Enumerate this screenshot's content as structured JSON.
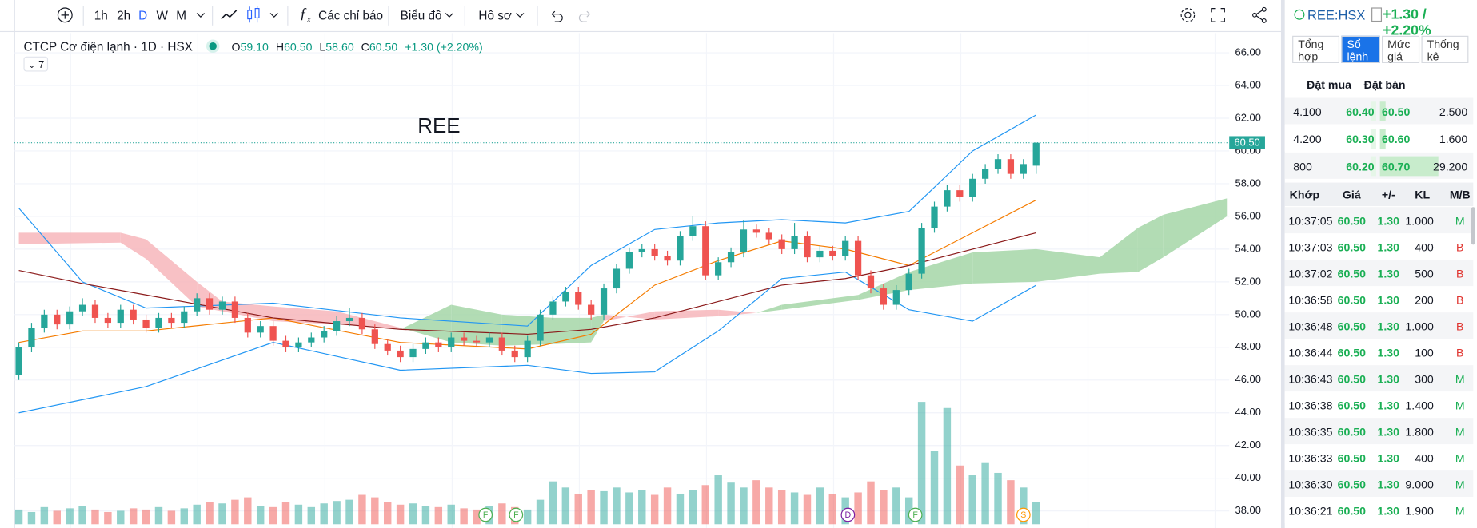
{
  "toolbar": {
    "intervals": [
      "1h",
      "2h",
      "D",
      "W",
      "M"
    ],
    "active_interval_color": "#2962ff",
    "indicators": "Các chỉ báo",
    "chart_menu": "Biểu đồ",
    "profile": "Hồ sơ"
  },
  "legend": {
    "name": "CTCP Cơ điện lạnh · 1D · HSX",
    "o_label": "O",
    "o": "59.10",
    "h_label": "H",
    "h": "60.50",
    "l_label": "L",
    "l": "58.60",
    "c_label": "C",
    "c": "60.50",
    "change": "+1.30 (+2.20%)",
    "collapse": "7"
  },
  "chart_data": {
    "type": "candlestick",
    "title": "REE",
    "up_color": "#26a69a",
    "down_color": "#ef5350",
    "ohlc": [
      [
        46.3,
        48.3,
        46.0,
        48.0
      ],
      [
        48.0,
        49.5,
        47.7,
        49.2
      ],
      [
        49.2,
        50.3,
        48.9,
        50.0
      ],
      [
        50.0,
        50.3,
        49.1,
        49.4
      ],
      [
        49.4,
        50.5,
        49.1,
        50.2
      ],
      [
        50.2,
        51.0,
        49.9,
        50.6
      ],
      [
        50.6,
        50.9,
        49.5,
        49.8
      ],
      [
        49.8,
        50.1,
        49.2,
        49.5
      ],
      [
        49.5,
        50.6,
        49.2,
        50.3
      ],
      [
        50.3,
        50.6,
        49.4,
        49.7
      ],
      [
        49.7,
        50.0,
        48.9,
        49.2
      ],
      [
        49.2,
        50.1,
        48.9,
        49.8
      ],
      [
        49.8,
        50.1,
        49.2,
        49.5
      ],
      [
        49.5,
        50.5,
        49.2,
        50.2
      ],
      [
        50.2,
        51.3,
        49.9,
        51.0
      ],
      [
        51.0,
        51.3,
        50.0,
        50.3
      ],
      [
        50.3,
        51.1,
        50.0,
        50.8
      ],
      [
        50.8,
        51.1,
        49.5,
        49.8
      ],
      [
        49.8,
        50.1,
        48.6,
        48.9
      ],
      [
        48.9,
        49.6,
        48.6,
        49.3
      ],
      [
        49.3,
        49.6,
        48.1,
        48.4
      ],
      [
        48.4,
        48.7,
        47.7,
        48.0
      ],
      [
        48.0,
        48.6,
        47.7,
        48.3
      ],
      [
        48.3,
        48.9,
        48.0,
        48.6
      ],
      [
        48.6,
        49.3,
        48.3,
        49.0
      ],
      [
        49.0,
        49.9,
        48.7,
        49.6
      ],
      [
        49.6,
        50.4,
        49.3,
        49.8
      ],
      [
        49.8,
        50.1,
        48.8,
        49.1
      ],
      [
        49.1,
        49.4,
        47.9,
        48.2
      ],
      [
        48.2,
        48.5,
        47.5,
        47.8
      ],
      [
        47.8,
        48.1,
        47.1,
        47.4
      ],
      [
        47.4,
        48.2,
        47.1,
        47.9
      ],
      [
        47.9,
        48.6,
        47.6,
        48.3
      ],
      [
        48.3,
        48.6,
        47.7,
        48.0
      ],
      [
        48.0,
        48.9,
        47.7,
        48.6
      ],
      [
        48.6,
        48.9,
        48.1,
        48.4
      ],
      [
        48.4,
        48.7,
        48.0,
        48.3
      ],
      [
        48.3,
        48.9,
        48.0,
        48.6
      ],
      [
        48.6,
        48.9,
        47.5,
        47.8
      ],
      [
        47.8,
        48.1,
        47.1,
        47.4
      ],
      [
        47.4,
        48.7,
        47.1,
        48.4
      ],
      [
        48.4,
        50.3,
        48.1,
        50.0
      ],
      [
        50.0,
        51.1,
        49.7,
        50.8
      ],
      [
        50.8,
        51.7,
        50.5,
        51.4
      ],
      [
        51.4,
        51.7,
        50.3,
        50.6
      ],
      [
        50.6,
        50.9,
        49.7,
        50.0
      ],
      [
        50.0,
        51.9,
        49.7,
        51.6
      ],
      [
        51.6,
        53.1,
        51.3,
        52.8
      ],
      [
        52.8,
        54.1,
        52.5,
        53.8
      ],
      [
        53.8,
        54.3,
        53.5,
        54.0
      ],
      [
        54.0,
        54.3,
        53.3,
        53.6
      ],
      [
        53.6,
        53.9,
        53.0,
        53.3
      ],
      [
        53.3,
        55.1,
        53.0,
        54.8
      ],
      [
        54.8,
        56.0,
        54.5,
        55.4
      ],
      [
        55.4,
        55.7,
        52.1,
        52.4
      ],
      [
        52.4,
        53.5,
        52.1,
        53.2
      ],
      [
        53.2,
        54.1,
        52.9,
        53.8
      ],
      [
        53.8,
        55.8,
        53.5,
        55.2
      ],
      [
        55.2,
        55.5,
        54.7,
        55.0
      ],
      [
        55.0,
        55.3,
        54.3,
        54.6
      ],
      [
        54.6,
        54.9,
        53.7,
        54.0
      ],
      [
        54.0,
        55.6,
        53.7,
        54.8
      ],
      [
        54.8,
        55.1,
        53.2,
        53.5
      ],
      [
        53.5,
        54.2,
        53.2,
        53.9
      ],
      [
        53.9,
        54.2,
        53.3,
        53.6
      ],
      [
        53.6,
        54.8,
        53.3,
        54.5
      ],
      [
        54.5,
        54.8,
        52.1,
        52.4
      ],
      [
        52.4,
        52.7,
        51.3,
        51.6
      ],
      [
        51.6,
        51.9,
        50.3,
        50.6
      ],
      [
        50.6,
        51.8,
        50.3,
        51.5
      ],
      [
        51.5,
        52.8,
        51.2,
        52.5
      ],
      [
        52.5,
        55.6,
        52.2,
        55.3
      ],
      [
        55.3,
        56.9,
        55.0,
        56.6
      ],
      [
        56.6,
        57.9,
        56.3,
        57.6
      ],
      [
        57.6,
        57.9,
        56.9,
        57.2
      ],
      [
        57.2,
        58.6,
        56.9,
        58.3
      ],
      [
        58.3,
        59.2,
        58.0,
        58.9
      ],
      [
        58.9,
        59.8,
        58.6,
        59.5
      ],
      [
        59.5,
        59.8,
        58.3,
        58.6
      ],
      [
        58.6,
        59.5,
        58.3,
        59.2
      ],
      [
        59.1,
        60.5,
        58.6,
        60.5
      ]
    ],
    "volume": [
      12,
      10,
      14,
      11,
      13,
      15,
      12,
      10,
      11,
      13,
      12,
      14,
      11,
      13,
      16,
      18,
      17,
      20,
      22,
      15,
      14,
      18,
      16,
      14,
      17,
      19,
      20,
      24,
      22,
      18,
      16,
      17,
      15,
      14,
      16,
      13,
      12,
      15,
      17,
      14,
      12,
      20,
      35,
      30,
      25,
      28,
      27,
      30,
      26,
      28,
      24,
      30,
      25,
      28,
      32,
      40,
      34,
      30,
      36,
      30,
      28,
      26,
      24,
      30,
      25,
      22,
      26,
      35,
      28,
      30,
      22,
      100,
      60,
      95,
      48,
      40,
      50,
      42,
      36,
      30,
      18
    ],
    "volume_lim": [
      0,
      100
    ],
    "indicator_x": [
      0,
      5,
      10,
      20,
      30,
      40,
      45,
      50,
      55,
      60,
      65,
      70,
      75,
      80
    ],
    "lines": [
      {
        "color": "#2196f3",
        "values": [
          56.5,
          52.0,
          50.4,
          50.7,
          49.8,
          49.3,
          53.0,
          55.2,
          55.6,
          55.8,
          55.6,
          56.3,
          60.0,
          62.2
        ]
      },
      {
        "color": "#2196f3",
        "values": [
          44.0,
          44.8,
          45.6,
          48.3,
          46.6,
          46.9,
          46.4,
          46.5,
          49.0,
          52.2,
          52.6,
          50.3,
          49.6,
          51.8
        ]
      },
      {
        "color": "#f57c00",
        "values": [
          48.3,
          49.0,
          49.0,
          49.8,
          48.3,
          47.9,
          48.8,
          51.8,
          53.3,
          54.5,
          54.0,
          53.0,
          55.0,
          57.0
        ]
      },
      {
        "color": "#8b1a1a",
        "values": [
          52.7,
          51.9,
          51.2,
          49.8,
          49.1,
          48.8,
          49.1,
          49.8,
          50.8,
          51.8,
          52.2,
          53.0,
          54.0,
          55.0
        ]
      }
    ],
    "ichimoku": {
      "up_color": "#a5d6a7",
      "down_color": "#f7b6bb",
      "x": [
        0,
        8,
        10,
        14,
        16,
        20,
        25,
        30,
        34,
        38,
        42,
        45,
        46,
        50,
        55,
        58,
        60,
        66,
        70,
        75,
        80,
        85,
        88,
        90,
        95
      ],
      "span_a": [
        54.3,
        54.4,
        53.4,
        50.5,
        50.2,
        49.6,
        49.4,
        49.1,
        50.6,
        50.0,
        49.8,
        49.8,
        50.0,
        49.7,
        49.9,
        50.1,
        50.6,
        51.2,
        52.6,
        53.8,
        54.0,
        53.5,
        55.3,
        56.1,
        57.1
      ],
      "span_b": [
        55.0,
        55.0,
        54.6,
        52.0,
        50.8,
        50.5,
        50.2,
        49.2,
        48.3,
        48.1,
        48.2,
        48.3,
        49.6,
        50.2,
        50.3,
        50.1,
        50.3,
        50.9,
        51.5,
        51.9,
        52.0,
        52.5,
        52.6,
        53.5,
        56.0
      ]
    },
    "events": [
      {
        "index": 36.7,
        "label": "F",
        "color": "#4caf50"
      },
      {
        "index": 39.1,
        "label": "F",
        "color": "#4caf50"
      },
      {
        "index": 65.2,
        "label": "D",
        "color": "#7b1fa2"
      },
      {
        "index": 70.5,
        "label": "F",
        "color": "#4caf50"
      },
      {
        "index": 79,
        "label": "S",
        "color": "#ff9800"
      }
    ],
    "last_price_label": "60.50",
    "ylim": [
      36.96,
      67.21
    ],
    "yticks": [
      {
        "value": 38,
        "label": "38.00"
      },
      {
        "value": 40,
        "label": "40.00"
      },
      {
        "value": 42,
        "label": "42.00"
      },
      {
        "value": 44,
        "label": "44.00"
      },
      {
        "value": 46,
        "label": "46.00"
      },
      {
        "value": 48,
        "label": "48.00"
      },
      {
        "value": 50,
        "label": "50.00"
      },
      {
        "value": 52,
        "label": "52.00"
      },
      {
        "value": 54,
        "label": "54.00"
      },
      {
        "value": 56,
        "label": "56.00"
      },
      {
        "value": 58,
        "label": "58.00"
      },
      {
        "value": 60,
        "label": "60.00"
      },
      {
        "value": 62,
        "label": "62.00"
      },
      {
        "value": 64,
        "label": "64.00"
      },
      {
        "value": 66,
        "label": "66.00"
      }
    ],
    "grid": true
  },
  "panel": {
    "symbol": "REE:HSX",
    "change": "+1.30 / +2.20%",
    "tabs": [
      "Tổng hợp",
      "Sổ lệnh",
      "Mức giá",
      "Thống kê"
    ],
    "active_tab": 1,
    "book_headers": [
      "Đặt mua",
      "Đặt bán"
    ],
    "book": [
      [
        "4.100",
        "60.40",
        "60.50",
        "2.500"
      ],
      [
        "4.200",
        "60.30",
        "60.60",
        "1.600"
      ],
      [
        "800",
        "60.20",
        "60.70",
        "29.200"
      ]
    ],
    "trade_headers": [
      "Khớp",
      "Giá",
      "+/-",
      "KL",
      "M/B"
    ],
    "trades": [
      {
        "time": "10:37:05",
        "price": "60.50",
        "change": "1.30",
        "volume": "1.000",
        "side": "M",
        "side_color": "#1aaf54"
      },
      {
        "time": "10:37:03",
        "price": "60.50",
        "change": "1.30",
        "volume": "400",
        "side": "B",
        "side_color": "#e0342f"
      },
      {
        "time": "10:37:02",
        "price": "60.50",
        "change": "1.30",
        "volume": "500",
        "side": "B",
        "side_color": "#e0342f"
      },
      {
        "time": "10:36:58",
        "price": "60.50",
        "change": "1.30",
        "volume": "200",
        "side": "B",
        "side_color": "#e0342f"
      },
      {
        "time": "10:36:48",
        "price": "60.50",
        "change": "1.30",
        "volume": "1.000",
        "side": "B",
        "side_color": "#e0342f"
      },
      {
        "time": "10:36:44",
        "price": "60.50",
        "change": "1.30",
        "volume": "100",
        "side": "B",
        "side_color": "#e0342f"
      },
      {
        "time": "10:36:43",
        "price": "60.50",
        "change": "1.30",
        "volume": "300",
        "side": "M",
        "side_color": "#1aaf54"
      },
      {
        "time": "10:36:38",
        "price": "60.50",
        "change": "1.30",
        "volume": "1.400",
        "side": "M",
        "side_color": "#1aaf54"
      },
      {
        "time": "10:36:35",
        "price": "60.50",
        "change": "1.30",
        "volume": "1.800",
        "side": "M",
        "side_color": "#1aaf54"
      },
      {
        "time": "10:36:33",
        "price": "60.50",
        "change": "1.30",
        "volume": "400",
        "side": "M",
        "side_color": "#1aaf54"
      },
      {
        "time": "10:36:30",
        "price": "60.50",
        "change": "1.30",
        "volume": "9.000",
        "side": "M",
        "side_color": "#1aaf54"
      },
      {
        "time": "10:36:21",
        "price": "60.50",
        "change": "1.30",
        "volume": "1.900",
        "side": "M",
        "side_color": "#1aaf54"
      }
    ]
  }
}
